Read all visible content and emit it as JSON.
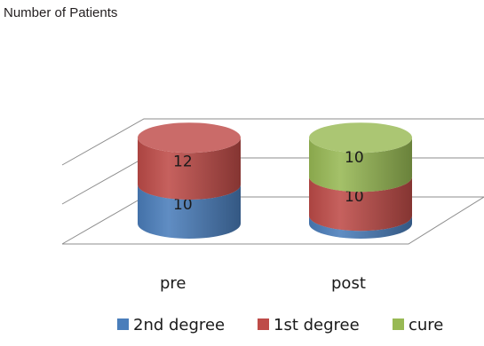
{
  "chart_data": {
    "type": "bar",
    "variant": "3d-stacked-cylinder",
    "title": "Number of Patients",
    "xlabel": "",
    "ylabel": "",
    "categories": [
      "pre",
      "post"
    ],
    "series": [
      {
        "name": "2nd degree",
        "values": [
          10,
          2
        ],
        "color": "#4a7ebb"
      },
      {
        "name": "1st degree",
        "values": [
          12,
          10
        ],
        "color": "#be4b48"
      },
      {
        "name": "cure",
        "values": [
          0,
          10
        ],
        "color": "#98b954"
      }
    ],
    "data_labels": true,
    "ylim": [
      0,
      24
    ],
    "grid": true,
    "legend_position": "bottom"
  }
}
